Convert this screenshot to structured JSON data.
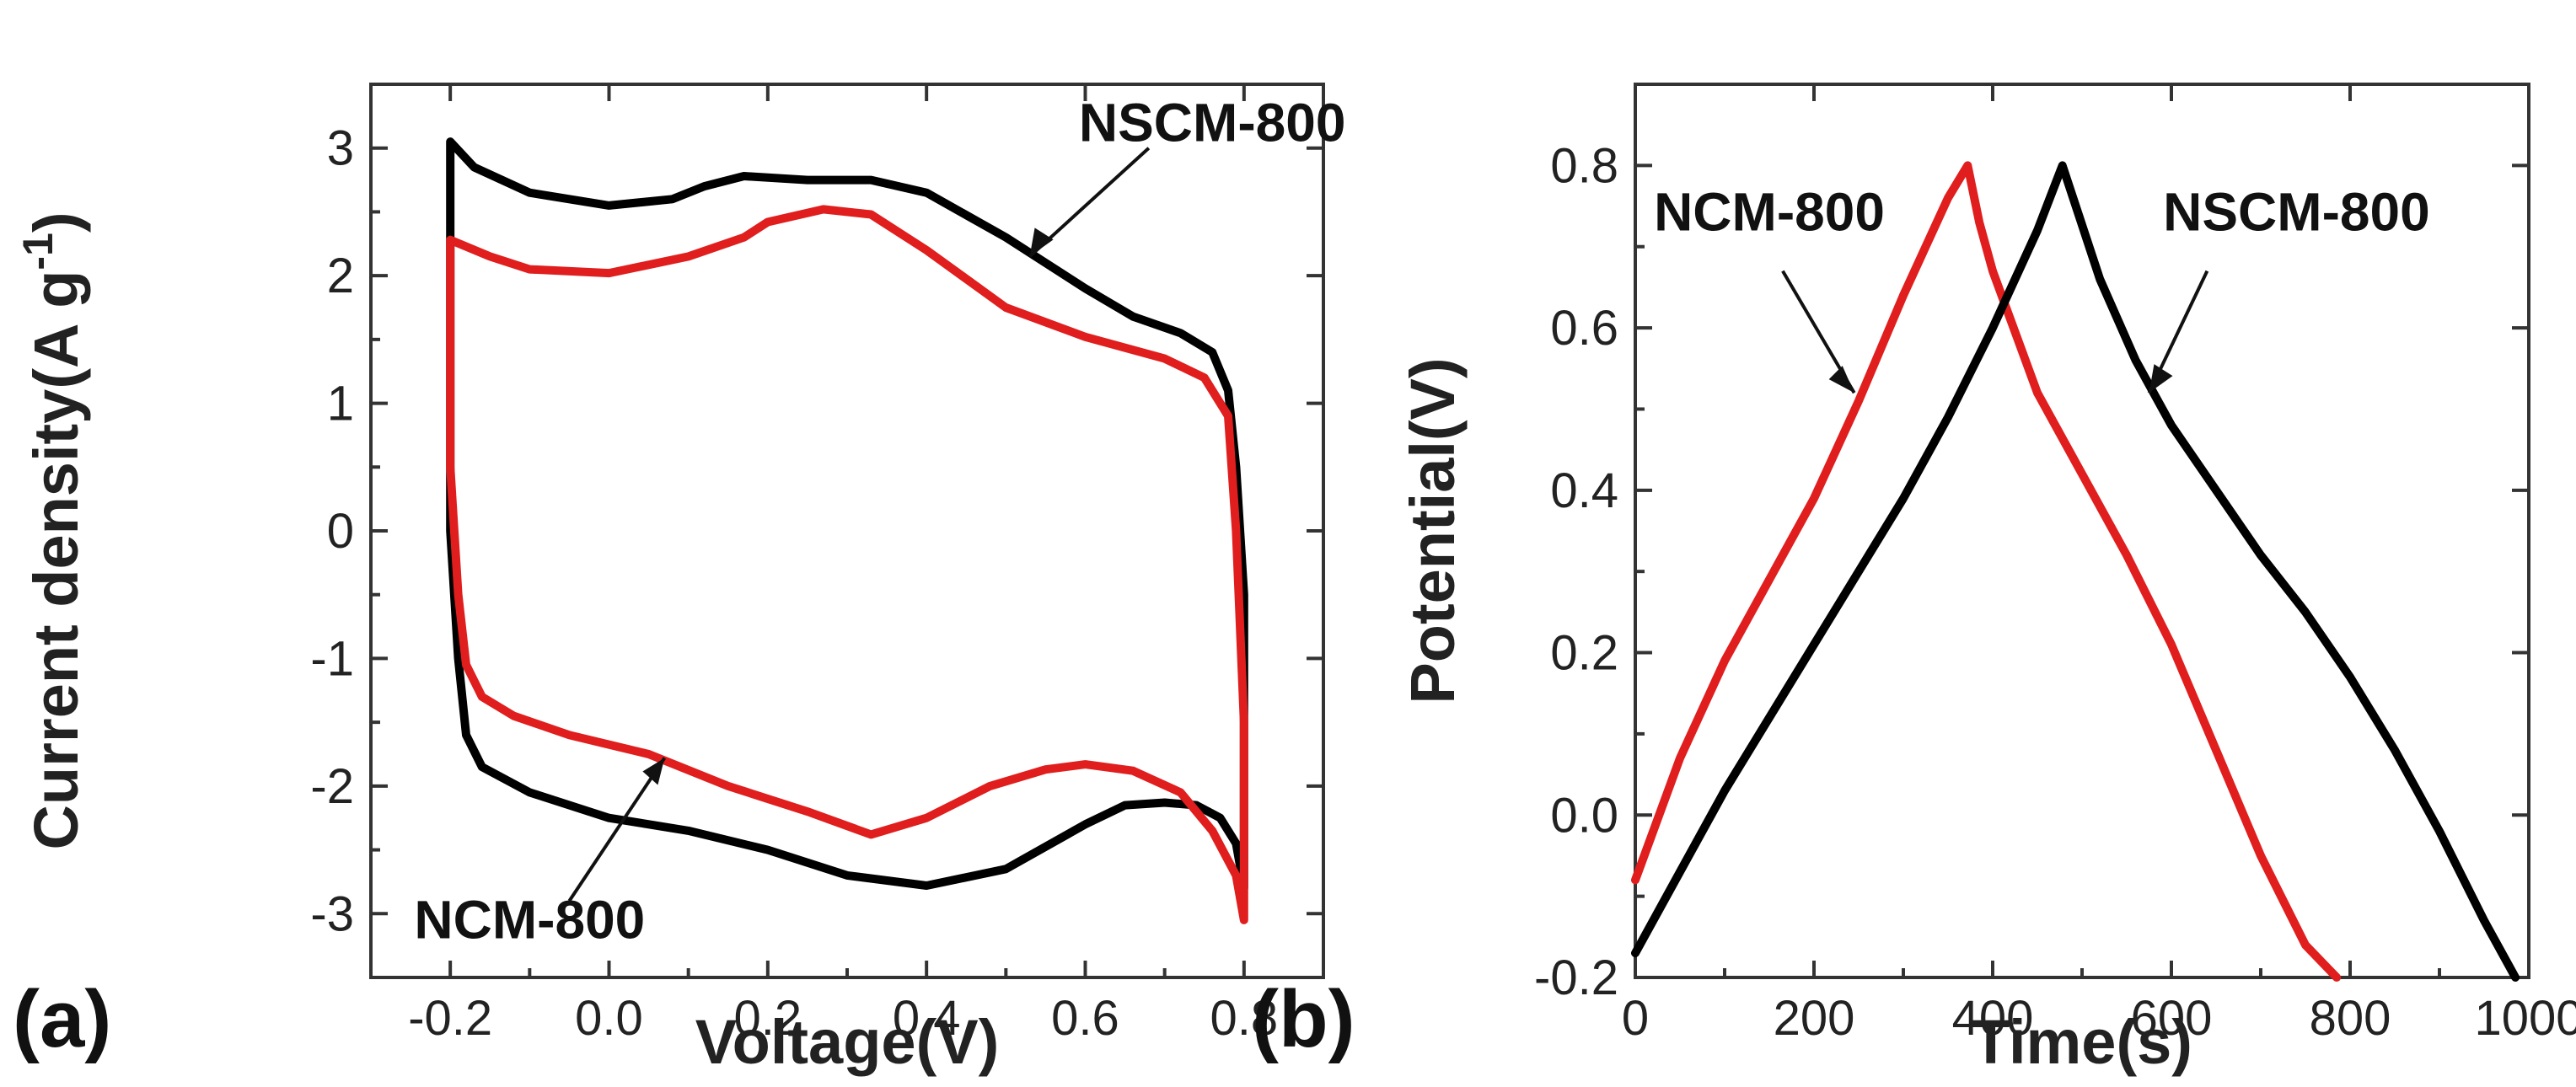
{
  "chart_data": [
    {
      "type": "line",
      "panel_label": "(a)",
      "xlabel": "Voltage(V)",
      "ylabel": "Current density(A g",
      "ylabel_sup": "-1",
      "ylabel_end": ")",
      "xlim": [
        -0.3,
        0.9
      ],
      "ylim": [
        -3.5,
        3.5
      ],
      "xticks": [
        -0.2,
        0.0,
        0.2,
        0.4,
        0.6,
        0.8
      ],
      "xtick_labels": [
        "-0.2",
        "0.0",
        "0.2",
        "0.4",
        "0.6",
        "0.8"
      ],
      "yticks": [
        -3,
        -2,
        -1,
        0,
        1,
        2,
        3
      ],
      "ytick_labels": [
        "-3",
        "-2",
        "-1",
        "0",
        "1",
        "2",
        "3"
      ],
      "series": [
        {
          "name": "NSCM-800",
          "color": "#000000",
          "x": [
            -0.2,
            -0.17,
            -0.1,
            0.0,
            0.08,
            0.12,
            0.17,
            0.25,
            0.33,
            0.4,
            0.5,
            0.6,
            0.66,
            0.72,
            0.76,
            0.78,
            0.79,
            0.8,
            0.8,
            0.79,
            0.77,
            0.74,
            0.7,
            0.65,
            0.6,
            0.5,
            0.4,
            0.3,
            0.2,
            0.1,
            0.0,
            -0.1,
            -0.16,
            -0.18,
            -0.19,
            -0.2,
            -0.2
          ],
          "y": [
            3.05,
            2.85,
            2.65,
            2.55,
            2.6,
            2.7,
            2.78,
            2.75,
            2.75,
            2.65,
            2.3,
            1.9,
            1.68,
            1.55,
            1.4,
            1.1,
            0.5,
            -0.5,
            -2.8,
            -2.45,
            -2.25,
            -2.15,
            -2.13,
            -2.15,
            -2.3,
            -2.65,
            -2.78,
            -2.7,
            -2.5,
            -2.35,
            -2.25,
            -2.05,
            -1.85,
            -1.6,
            -1.0,
            0.0,
            3.05
          ]
        },
        {
          "name": "NCM-800",
          "color": "#e01e1e",
          "x": [
            -0.2,
            -0.15,
            -0.1,
            0.0,
            0.1,
            0.17,
            0.2,
            0.27,
            0.33,
            0.4,
            0.5,
            0.6,
            0.7,
            0.75,
            0.78,
            0.79,
            0.8,
            0.8,
            0.79,
            0.76,
            0.72,
            0.66,
            0.6,
            0.55,
            0.48,
            0.4,
            0.33,
            0.25,
            0.15,
            0.05,
            -0.05,
            -0.12,
            -0.16,
            -0.18,
            -0.19,
            -0.2,
            -0.2
          ],
          "y": [
            2.28,
            2.15,
            2.05,
            2.02,
            2.15,
            2.3,
            2.42,
            2.52,
            2.48,
            2.2,
            1.75,
            1.52,
            1.35,
            1.2,
            0.9,
            0.0,
            -1.5,
            -3.05,
            -2.7,
            -2.35,
            -2.05,
            -1.88,
            -1.83,
            -1.87,
            -2.0,
            -2.25,
            -2.38,
            -2.2,
            -2.0,
            -1.75,
            -1.6,
            -1.45,
            -1.3,
            -1.05,
            -0.5,
            0.5,
            2.28
          ]
        }
      ],
      "annotations": [
        {
          "text": "NSCM-800",
          "series": "NSCM-800",
          "arrow_to": [
            0.53,
            2.15
          ]
        },
        {
          "text": "NCM-800",
          "series": "NCM-800",
          "arrow_to": [
            0.07,
            -1.78
          ]
        }
      ]
    },
    {
      "type": "line",
      "panel_label": "(b)",
      "xlabel": "Time(s)",
      "ylabel": "Potential(V)",
      "xlim": [
        0,
        1000
      ],
      "ylim": [
        -0.2,
        0.9
      ],
      "xticks": [
        0,
        200,
        400,
        600,
        800,
        1000
      ],
      "xtick_labels": [
        "0",
        "200",
        "400",
        "600",
        "800",
        "1000"
      ],
      "yticks": [
        -0.2,
        0.0,
        0.2,
        0.4,
        0.6,
        0.8
      ],
      "ytick_labels": [
        "-0.2",
        "0.0",
        "0.2",
        "0.4",
        "0.6",
        "0.8"
      ],
      "series": [
        {
          "name": "NCM-800",
          "color": "#e01e1e",
          "x": [
            0,
            50,
            100,
            150,
            200,
            250,
            300,
            350,
            372,
            385,
            400,
            450,
            500,
            550,
            600,
            650,
            700,
            750,
            785
          ],
          "y": [
            -0.08,
            0.07,
            0.19,
            0.29,
            0.39,
            0.51,
            0.64,
            0.76,
            0.8,
            0.73,
            0.67,
            0.52,
            0.42,
            0.32,
            0.21,
            0.08,
            -0.05,
            -0.16,
            -0.2
          ]
        },
        {
          "name": "NSCM-800",
          "color": "#000000",
          "x": [
            0,
            50,
            100,
            150,
            200,
            250,
            300,
            350,
            400,
            450,
            478,
            490,
            520,
            560,
            600,
            650,
            700,
            750,
            800,
            850,
            900,
            950,
            985
          ],
          "y": [
            -0.17,
            -0.07,
            0.03,
            0.12,
            0.21,
            0.3,
            0.39,
            0.49,
            0.6,
            0.72,
            0.8,
            0.76,
            0.66,
            0.56,
            0.48,
            0.4,
            0.32,
            0.25,
            0.17,
            0.08,
            -0.02,
            -0.13,
            -0.2
          ]
        }
      ],
      "annotations": [
        {
          "text": "NCM-800",
          "series": "NCM-800",
          "arrow_to": [
            245,
            0.52
          ]
        },
        {
          "text": "NSCM-800",
          "series": "NSCM-800",
          "arrow_to": [
            575,
            0.52
          ]
        }
      ]
    }
  ]
}
